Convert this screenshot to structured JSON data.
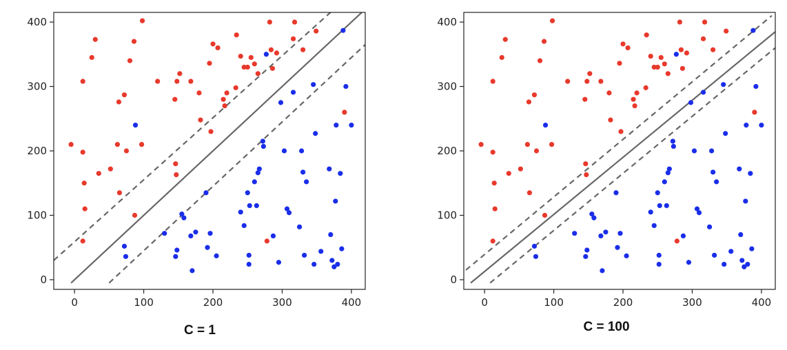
{
  "chart_data": [
    {
      "type": "scatter",
      "title": "C = 1",
      "xlabel": "",
      "ylabel": "",
      "xlim": [
        -30,
        420
      ],
      "ylim": [
        -15,
        415
      ],
      "xticks": [
        0,
        100,
        200,
        300,
        400
      ],
      "yticks": [
        0,
        100,
        200,
        300,
        400
      ],
      "grid": false,
      "series": [
        {
          "color": "#e8392c",
          "points": [
            [
              -5,
              210
            ],
            [
              12,
              198
            ],
            [
              14,
              150
            ],
            [
              15,
              110
            ],
            [
              12,
              60
            ],
            [
              12,
              308
            ],
            [
              25,
              345
            ],
            [
              30,
              373
            ],
            [
              35,
              165
            ],
            [
              52,
              172
            ],
            [
              62,
              210
            ],
            [
              64,
              276
            ],
            [
              65,
              135
            ],
            [
              72,
              287
            ],
            [
              75,
              200
            ],
            [
              80,
              340
            ],
            [
              86,
              370
            ],
            [
              87,
              100
            ],
            [
              97,
              210
            ],
            [
              98,
              402
            ],
            [
              120,
              308
            ],
            [
              145,
              280
            ],
            [
              146,
              180
            ],
            [
              147,
              163
            ],
            [
              148,
              308
            ],
            [
              152,
              320
            ],
            [
              168,
              308
            ],
            [
              180,
              290
            ],
            [
              182,
              248
            ],
            [
              195,
              336
            ],
            [
              197,
              230
            ],
            [
              200,
              366
            ],
            [
              207,
              360
            ],
            [
              215,
              280
            ],
            [
              217,
              270
            ],
            [
              220,
              290
            ],
            [
              233,
              298
            ],
            [
              234,
              380
            ],
            [
              240,
              347
            ],
            [
              245,
              330
            ],
            [
              250,
              330
            ],
            [
              255,
              345
            ],
            [
              260,
              335
            ],
            [
              265,
              320
            ],
            [
              278,
              60
            ],
            [
              282,
              400
            ],
            [
              284,
              357
            ],
            [
              286,
              328
            ],
            [
              292,
              352
            ],
            [
              316,
              374
            ],
            [
              318,
              400
            ],
            [
              330,
              357
            ],
            [
              349,
              386
            ],
            [
              390,
              260
            ]
          ]
        },
        {
          "color": "#1a2ee8",
          "points": [
            [
              72,
              52
            ],
            [
              74,
              36
            ],
            [
              88,
              240
            ],
            [
              130,
              72
            ],
            [
              146,
              36
            ],
            [
              148,
              46
            ],
            [
              155,
              102
            ],
            [
              158,
              96
            ],
            [
              168,
              68
            ],
            [
              170,
              14
            ],
            [
              175,
              74
            ],
            [
              190,
              135
            ],
            [
              192,
              50
            ],
            [
              196,
              72
            ],
            [
              205,
              37
            ],
            [
              240,
              105
            ],
            [
              245,
              84
            ],
            [
              250,
              135
            ],
            [
              252,
              38
            ],
            [
              252,
              24
            ],
            [
              253,
              115
            ],
            [
              260,
              152
            ],
            [
              263,
              115
            ],
            [
              265,
              166
            ],
            [
              267,
              172
            ],
            [
              272,
              215
            ],
            [
              273,
              207
            ],
            [
              277,
              350
            ],
            [
              287,
              68
            ],
            [
              295,
              27
            ],
            [
              298,
              275
            ],
            [
              303,
              200
            ],
            [
              307,
              110
            ],
            [
              310,
              104
            ],
            [
              316,
              291
            ],
            [
              325,
              82
            ],
            [
              328,
              200
            ],
            [
              330,
              167
            ],
            [
              332,
              38
            ],
            [
              335,
              152
            ],
            [
              345,
              303
            ],
            [
              346,
              24
            ],
            [
              348,
              227
            ],
            [
              356,
              44
            ],
            [
              368,
              172
            ],
            [
              370,
              70
            ],
            [
              372,
              30
            ],
            [
              375,
              20
            ],
            [
              377,
              122
            ],
            [
              378,
              240
            ],
            [
              380,
              24
            ],
            [
              384,
              165
            ],
            [
              386,
              48
            ],
            [
              388,
              387
            ],
            [
              392,
              300
            ],
            [
              400,
              240
            ]
          ]
        }
      ],
      "decision_line": [
        [
          -5,
          -5
        ],
        [
          420,
          420
        ]
      ],
      "margin_upper": [
        [
          -30,
          30
        ],
        [
          375,
          420
        ]
      ],
      "margin_lower": [
        [
          50,
          -5
        ],
        [
          420,
          365
        ]
      ]
    },
    {
      "type": "scatter",
      "title": "C = 100",
      "xlabel": "",
      "ylabel": "",
      "xlim": [
        -30,
        420
      ],
      "ylim": [
        -15,
        415
      ],
      "xticks": [
        0,
        100,
        200,
        300,
        400
      ],
      "yticks": [
        0,
        100,
        200,
        300,
        400
      ],
      "grid": false,
      "series": [
        {
          "color": "#e8392c",
          "points": [
            [
              -5,
              210
            ],
            [
              12,
              198
            ],
            [
              14,
              150
            ],
            [
              15,
              110
            ],
            [
              12,
              60
            ],
            [
              12,
              308
            ],
            [
              25,
              345
            ],
            [
              30,
              373
            ],
            [
              35,
              165
            ],
            [
              52,
              172
            ],
            [
              62,
              210
            ],
            [
              64,
              276
            ],
            [
              65,
              135
            ],
            [
              72,
              287
            ],
            [
              75,
              200
            ],
            [
              80,
              340
            ],
            [
              86,
              370
            ],
            [
              87,
              100
            ],
            [
              97,
              210
            ],
            [
              98,
              402
            ],
            [
              120,
              308
            ],
            [
              145,
              280
            ],
            [
              146,
              180
            ],
            [
              147,
              163
            ],
            [
              148,
              308
            ],
            [
              152,
              320
            ],
            [
              168,
              308
            ],
            [
              180,
              290
            ],
            [
              182,
              248
            ],
            [
              195,
              336
            ],
            [
              197,
              230
            ],
            [
              200,
              366
            ],
            [
              207,
              360
            ],
            [
              215,
              280
            ],
            [
              217,
              270
            ],
            [
              220,
              290
            ],
            [
              233,
              298
            ],
            [
              234,
              380
            ],
            [
              240,
              347
            ],
            [
              245,
              330
            ],
            [
              250,
              330
            ],
            [
              255,
              345
            ],
            [
              260,
              335
            ],
            [
              265,
              320
            ],
            [
              278,
              60
            ],
            [
              282,
              400
            ],
            [
              284,
              357
            ],
            [
              286,
              328
            ],
            [
              292,
              352
            ],
            [
              316,
              374
            ],
            [
              318,
              400
            ],
            [
              330,
              357
            ],
            [
              349,
              386
            ],
            [
              390,
              260
            ]
          ]
        },
        {
          "color": "#1a2ee8",
          "points": [
            [
              72,
              52
            ],
            [
              74,
              36
            ],
            [
              88,
              240
            ],
            [
              130,
              72
            ],
            [
              146,
              36
            ],
            [
              148,
              46
            ],
            [
              155,
              102
            ],
            [
              158,
              96
            ],
            [
              168,
              68
            ],
            [
              170,
              14
            ],
            [
              175,
              74
            ],
            [
              190,
              135
            ],
            [
              192,
              50
            ],
            [
              196,
              72
            ],
            [
              205,
              37
            ],
            [
              240,
              105
            ],
            [
              245,
              84
            ],
            [
              250,
              135
            ],
            [
              252,
              38
            ],
            [
              252,
              24
            ],
            [
              253,
              115
            ],
            [
              260,
              152
            ],
            [
              263,
              115
            ],
            [
              265,
              166
            ],
            [
              267,
              172
            ],
            [
              272,
              215
            ],
            [
              273,
              207
            ],
            [
              277,
              350
            ],
            [
              287,
              68
            ],
            [
              295,
              27
            ],
            [
              298,
              275
            ],
            [
              303,
              200
            ],
            [
              307,
              110
            ],
            [
              310,
              104
            ],
            [
              316,
              291
            ],
            [
              325,
              82
            ],
            [
              328,
              200
            ],
            [
              330,
              167
            ],
            [
              332,
              38
            ],
            [
              335,
              152
            ],
            [
              345,
              303
            ],
            [
              346,
              24
            ],
            [
              348,
              227
            ],
            [
              356,
              44
            ],
            [
              368,
              172
            ],
            [
              370,
              70
            ],
            [
              372,
              30
            ],
            [
              375,
              20
            ],
            [
              377,
              122
            ],
            [
              378,
              240
            ],
            [
              380,
              24
            ],
            [
              384,
              165
            ],
            [
              386,
              48
            ],
            [
              388,
              387
            ],
            [
              392,
              300
            ],
            [
              400,
              240
            ]
          ]
        }
      ],
      "decision_line": [
        [
          -20,
          -5
        ],
        [
          420,
          385
        ]
      ],
      "margin_upper": [
        [
          -27,
          15
        ],
        [
          415,
          410
        ]
      ],
      "margin_lower": [
        [
          8,
          -5
        ],
        [
          420,
          360
        ]
      ]
    }
  ]
}
